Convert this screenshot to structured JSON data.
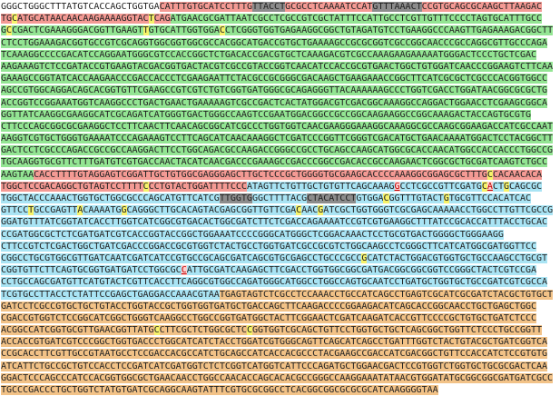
{
  "sequence_lines": [
    [
      {
        "text": "GGGCTGGGCTTTATGTCACCAGCTGGTGA",
        "highlight": "none"
      },
      {
        "text": "CATTTGTGCATCCTTTG",
        "highlight": "red"
      },
      {
        "text": "TTACCT",
        "highlight": "gray"
      },
      {
        "text": "GCGCCTCAAAATCCAT",
        "highlight": "red"
      },
      {
        "text": "GTTTAAACT",
        "highlight": "gray"
      },
      {
        "text": "CCGTGCAGCGCAAGCTTAAGAC",
        "highlight": "red"
      }
    ],
    [
      {
        "text": "TG",
        "highlight": "red"
      },
      {
        "text": "C",
        "highlight": "yellow"
      },
      {
        "text": "ATGCATAACAACAAGAAAAGGTAC",
        "highlight": "red"
      },
      {
        "text": "T",
        "highlight": "yellow"
      },
      {
        "text": "CAG",
        "highlight": "red"
      },
      {
        "text": "ATGAACGCGATTAATCGCCTCGCCGTCGCTATTTCCATTGCCTCGTTGTTTCCCCTAGTGCATTTGCC",
        "highlight": "green"
      }
    ],
    [
      {
        "text": "G",
        "highlight": "green"
      },
      {
        "text": "C",
        "highlight": "yellow"
      },
      {
        "text": "CGACTCGAAAGGGACGGTTGAAGT",
        "highlight": "green"
      },
      {
        "text": "T",
        "highlight": "yellow"
      },
      {
        "text": "GTGCATTGGTGGA",
        "highlight": "green"
      },
      {
        "text": "C",
        "highlight": "yellow"
      },
      {
        "text": "CTCGGGTGGTGAGAAGGCGGCTGTAGATGTCCTGAAGGCCCAAGTTGAGAAAGACGGCTT",
        "highlight": "green"
      }
    ],
    [
      {
        "text": "CTCCTGGAAAGACGGTGCCGTCGCAGGTGGCGGTGGCGCCACGGCATGACCGTGCTGAAAAGCCGCGCGGTCGCCGGCAACCCGCCAGGCGTTGCCCAGA",
        "highlight": "green"
      }
    ],
    [
      {
        "text": "TCAAAGGCCCCGACATCCAGGAATGGGCGTCCACCGGCTCTGACACCGACGTGCTCAAAGACGTCGCCAAAGAAGAAAAATGGGACTCCCTGCTCGAC",
        "highlight": "green"
      }
    ],
    [
      {
        "text": "AAGAAAGTCTCCGATACCGTGAAGTACGACGGTGACTACGTCGCCGTACCGGTCAACATCCACCGCGTGAACTGGCTGTGGATCAACCCGGAAGTCTTCAA",
        "highlight": "green"
      }
    ],
    [
      {
        "text": "GAAAGCCGGTATCACCAAGAACCCGACCACCCTCGAAGAATTCTACGCCGCGGGCGACAAGCTGAAGAAACCGGCTTCATCGCGCTCGCCCACGGTGGCC",
        "highlight": "green"
      }
    ],
    [
      {
        "text": "AGCCGTGGCAGGACAGCACGGTGTTCGAAGCCGTCGTCTGTCGGTGATGGGCGCAGAGGGTTACAAAAAAGCCCTGGTCGACCTGGATAACGGCGCGCTG",
        "highlight": "green"
      }
    ],
    [
      {
        "text": "ACCGGTCCGGAAATGGTCAAGGCCCTGACTGAACTGAAAAAGTCGCCGACTCACTATGGACGTCGACGGCAAAGGCCAGGACTGGAACCTCGAAGCGGCA",
        "highlight": "green"
      }
    ],
    [
      {
        "text": "GGTTATCAAGGCGAAGGCATCGCAGATCATGGGTGACTGGGCCAAGTCCGAATGGACGGCCGCCGGCAAGAAGGCCGGCAAAGACTACCAGTGCGTG",
        "highlight": "green"
      }
    ],
    [
      {
        "text": "CTTCCCAGCGGCGCGAAGGCTCCTTCAACTTCAACAGCGGCATCGCCCTGGTGGTCAACGAAGGGAAAGGCAAAGGCGCCAAGCGGAAGACCATCGCCAAT",
        "highlight": "green"
      }
    ],
    [
      {
        "text": "AAGGTCGTGCTGGGTGAAAATCCCAGAAAGTCCTTCAGCATCAACAAAGGCTCGATCCCGGTTCGGGTCGACATGCTGAACAAAATGGACTCCTACGGCTT",
        "highlight": "green"
      }
    ],
    [
      {
        "text": "GACTCCTCGCCCAGACCGCCGCCAAGGACTTCCTGGCAGACGCCAAGACCGGGCCGCCTGCAGCCAAGCATGGCGCACCAACATGGCCACCACCCTGGCCG",
        "highlight": "green"
      }
    ],
    [
      {
        "text": "TGCAAGGTGCGTTCTTTGATGTCGTGACCAACTACATCAACGACCCGAAAGCCGACCCGGCCGACACCGCCAAGAACTCGGCGCTGCGATCAAGTCTGCC",
        "highlight": "green"
      }
    ],
    [
      {
        "text": "AAGTAA",
        "highlight": "green"
      },
      {
        "text": "CACCTTTTGTAGGAGTCGGATTGCTGTGGCGAGGGAGCTTGCTCCCGCTGGGGTGCGAAGCACCCCAAAGGCGGAGCGCTTTG",
        "highlight": "red"
      },
      {
        "text": "C",
        "highlight": "yellow"
      },
      {
        "text": "CACAACACA",
        "highlight": "red"
      }
    ],
    [
      {
        "text": "TGGCTCCGACAGGCTGTAGTCCTTTT",
        "highlight": "red"
      },
      {
        "text": "C",
        "highlight": "yellow"
      },
      {
        "text": "CCTGTACTGGATTTTCCC",
        "highlight": "red"
      },
      {
        "text": "ATAGTTCTGTTGCTGTGTTCAGCAAAG",
        "highlight": "blue"
      },
      {
        "text": "G",
        "highlight": "mark"
      },
      {
        "text": "CCTCGCCGTTCGATG",
        "highlight": "blue"
      },
      {
        "text": "C",
        "highlight": "yellow"
      },
      {
        "text": "A",
        "highlight": "mark"
      },
      {
        "text": "CT",
        "highlight": "blue"
      },
      {
        "text": "G",
        "highlight": "yellow"
      },
      {
        "text": "CAGCGC",
        "highlight": "blue"
      }
    ],
    [
      {
        "text": "TGGCTACCCAAACTGGTGCTGGCGCCCAGCATGTTCATCG",
        "highlight": "blue"
      },
      {
        "text": "TTGGTG",
        "highlight": "gray"
      },
      {
        "text": "GGCTTTTACG",
        "highlight": "blue"
      },
      {
        "text": "CTACATCCT",
        "highlight": "gray"
      },
      {
        "text": "GTGGA",
        "highlight": "blue"
      },
      {
        "text": "C",
        "highlight": "yellow"
      },
      {
        "text": "GGTTTGTACT",
        "highlight": "blue"
      },
      {
        "text": "G",
        "highlight": "yellow"
      },
      {
        "text": "TGCGTTCCACATCAC",
        "highlight": "blue"
      }
    ],
    [
      {
        "text": "GTTCC",
        "highlight": "blue"
      },
      {
        "text": "T",
        "highlight": "yellow"
      },
      {
        "text": "GCCGAGTT",
        "highlight": "blue"
      },
      {
        "text": "A",
        "highlight": "yellow"
      },
      {
        "text": "CAAAATG",
        "highlight": "blue"
      },
      {
        "text": "G",
        "highlight": "yellow"
      },
      {
        "text": "CAGGGCTTGCACAGTACGAGCGGTTGTTCGA",
        "highlight": "blue"
      },
      {
        "text": "C",
        "highlight": "yellow"
      },
      {
        "text": "AAC",
        "highlight": "blue"
      },
      {
        "text": "G",
        "highlight": "yellow"
      },
      {
        "text": "ATCGCTGGTGGGTCGCGAGCAAAAACCTGGCCTTGTTCGCCG",
        "highlight": "blue"
      }
    ],
    [
      {
        "text": "GGATGTTTATCGGTATCACCTTGGTCATCGGCGTGACACTGGCGATCTTCTCGACCAGAAAATCCGTCGTGAAGGCTTTATCCGCACCATTTACCTGCAC",
        "highlight": "blue"
      }
    ],
    [
      {
        "text": "CCGATGGCGCTCTCGATGATCGTCACCGGTACCGGCTGGAAATCCCCGGGCATGGGCTCGGACAAACTCCTGCGTGACTGGGGCTGGGAAGG",
        "highlight": "blue"
      }
    ],
    [
      {
        "text": "CTTCCGTCTCGACTGGCTGATCGACCCGGACCGCGTGGTCTACTGCCTGGTGATCGCCGCGTCTGGCAAGCCTCGGGCTTCATCATGGCGATGGTTCC",
        "highlight": "blue"
      }
    ],
    [
      {
        "text": "CGGCCTGCGTGGCGTTGATCAATCGATCATCCGTGCCGCAGCGATCAGCGTGCGAGCCTGCCCGCC",
        "highlight": "blue"
      },
      {
        "text": "G",
        "highlight": "yellow"
      },
      {
        "text": "CATCTACTGGACGTGGTGCTGCCAAGCCTGCGT",
        "highlight": "blue"
      }
    ],
    [
      {
        "text": "CGGTGTTCTTCAGTGCGGTGATGATCCTGGCGC",
        "highlight": "blue"
      },
      {
        "text": "C",
        "highlight": "mark"
      },
      {
        "text": "ATTGCGATCAAGAGCTTCGACCTGGTGGCGGCGATGACGGCGGCGGTCCGGGCTACTCGTCCGA",
        "highlight": "blue"
      }
    ],
    [
      {
        "text": "CCTGCCAGCGATGTTCATGTACTCGTTCACCTTCAGGCGTGGCCAGATGGGCATGGCCTGGCCAGTGCAATCCTGATGCTGGTGCTGCCGATCGTCGCCA",
        "highlight": "blue"
      }
    ],
    [
      {
        "text": "TCGTGCCTTACCTCTATTCCGAGCTGAGGACCAAACGTAA",
        "highlight": "blue"
      },
      {
        "text": "TGAGTAGTCTCGCCTCCAAACCTGCCATCAGCCTGAGTCGCATCGCGATCTACGCTGTGCT",
        "highlight": "orange"
      }
    ],
    [
      {
        "text": "GATCCTCGCCGTGCTGCTGTACCTGGTACCGCTGGTGGTGATGCTGACCAGCTTCAAGACCCCGGAAGACATCAGCACCGGCAACCTGCTGAGCTGGC",
        "highlight": "orange"
      }
    ],
    [
      {
        "text": "CGACCGTGGTCTCCGGCATCGGCTGGGTCAAGGCCTGGCCGGTGATGGCTACTTCGGAACTCGATCAAGATCACCGTTCCCCGCTGTGCTGATCTCCC",
        "highlight": "orange"
      }
    ],
    [
      {
        "text": "ACGGCCATCGGTGCGTTGAACGGTTATG",
        "highlight": "orange"
      },
      {
        "text": "C",
        "highlight": "yellow"
      },
      {
        "text": "CTTCGCTCTGGCGCTC",
        "highlight": "orange"
      },
      {
        "text": "C",
        "highlight": "yellow"
      },
      {
        "text": "GGTGGTCGCAGCTGTTCCTGGTGCTGCTCAGCGGCTGGTTCTCCCTGCCGGTT",
        "highlight": "orange"
      }
    ],
    [
      {
        "text": "ACCACCGTGATCGTCCCGGCTGGTGACCCTGGCATCATCTACCTGGATCGTGGGCAGTTCAGCATCAGCCTGATTTGGTCTACTGTACGCTGATCGGTCA",
        "highlight": "orange"
      }
    ],
    [
      {
        "text": "CCGCACCTTCGTTGCCGTAATGCCTCCGACCACGCCATCTGCAGCCATCACCACGCCCTACGAAGCCGACCATCGACGGCTGTTCCACCATCTCCGTGTG",
        "highlight": "orange"
      }
    ],
    [
      {
        "text": "ATCATTCTGCCGCTGTCCACCTCCGATCATCGATGGTCTCTCGGTCATGGTCATTCCCAGATGCTGGAACGACTCCGTGGTCTGGTGCTGCGCGACTCAA",
        "highlight": "orange"
      }
    ],
    [
      {
        "text": "GGACTCCCAGCCCATCCACGGTGGCGCTGAACAACCTGGCCAACACCAGCACACGCCGGGCCAAGGAAATATAACGTGGATATGCGGCGGCGATGATCGCC",
        "highlight": "orange"
      }
    ],
    [
      {
        "text": "TGCCCGACCCTGCTGGTCTATGTGATCGCAGGCAAGTATTTCGTGCGCGGCCTCACGGCGGCGCGCGCATCAAGGGGTAA",
        "highlight": "orange"
      }
    ]
  ]
}
